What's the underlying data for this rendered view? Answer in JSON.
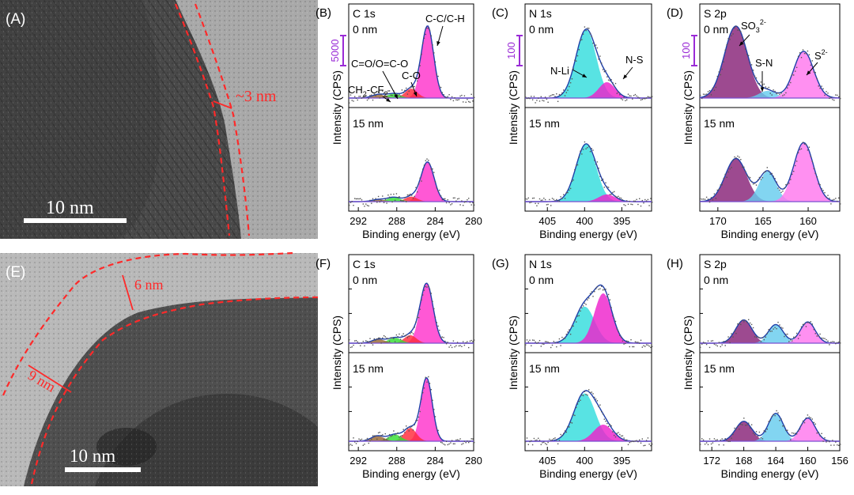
{
  "figure": {
    "tem": [
      {
        "label": "(A)",
        "scale": "10 nm",
        "thickness": [
          "~3 nm"
        ]
      },
      {
        "label": "(E)",
        "scale": "10 nm",
        "thickness": [
          "6 nm",
          "9 nm"
        ]
      }
    ]
  },
  "chart_data": [
    {
      "id": "B",
      "type": "line",
      "panel_label": "(B)",
      "element": "C 1s",
      "xlabel": "Binding energy (eV)",
      "ylabel": "Intensity (CPS)",
      "xlim": [
        293,
        280
      ],
      "xticks": [
        292,
        288,
        284,
        280
      ],
      "scale_bar": "5000",
      "subpanels": [
        {
          "depth": "0 nm",
          "peaks": [
            {
              "name": "C-C/C-H",
              "center": 284.8,
              "height": 1.0,
              "fwhm": 1.5,
              "color": "#ff33cc"
            },
            {
              "name": "C-O",
              "center": 286.5,
              "height": 0.13,
              "fwhm": 1.5,
              "color": "#ff2a3a"
            },
            {
              "name": "C=O/O=C-O",
              "center": 288.3,
              "height": 0.06,
              "fwhm": 1.6,
              "color": "#33dd33"
            },
            {
              "name": "CH2-CF2",
              "center": 289.9,
              "height": 0.05,
              "fwhm": 1.6,
              "color": "#996633"
            }
          ],
          "annotations": [
            "C-C/C-H",
            "C=O/O=C-O",
            "C-O",
            "CH2-CF2"
          ]
        },
        {
          "depth": "15 nm",
          "peaks": [
            {
              "name": "C-C/C-H",
              "center": 284.8,
              "height": 0.55,
              "fwhm": 1.6,
              "color": "#ff33cc"
            },
            {
              "name": "C-O",
              "center": 286.5,
              "height": 0.07,
              "fwhm": 1.5,
              "color": "#ff2a3a"
            },
            {
              "name": "C=O/O=C-O",
              "center": 288.3,
              "height": 0.06,
              "fwhm": 1.6,
              "color": "#33dd33"
            },
            {
              "name": "CH2-CF2",
              "center": 289.9,
              "height": 0.03,
              "fwhm": 1.6,
              "color": "#996633"
            }
          ]
        }
      ]
    },
    {
      "id": "C",
      "type": "line",
      "panel_label": "(C)",
      "element": "N 1s",
      "xlabel": "Binding energy (eV)",
      "ylabel": "Intensity (CPS)",
      "xlim": [
        408,
        391
      ],
      "xticks": [
        405,
        400,
        395
      ],
      "scale_bar": "100",
      "subpanels": [
        {
          "depth": "0 nm",
          "peaks": [
            {
              "name": "N-Li",
              "center": 399.8,
              "height": 0.95,
              "fwhm": 3.2,
              "color": "#33dddd"
            },
            {
              "name": "N-S",
              "center": 397.0,
              "height": 0.22,
              "fwhm": 2.6,
              "color": "#ee22cc"
            }
          ],
          "annotations": [
            "N-Li",
            "N-S"
          ]
        },
        {
          "depth": "15 nm",
          "peaks": [
            {
              "name": "N-Li",
              "center": 399.8,
              "height": 0.8,
              "fwhm": 3.2,
              "color": "#33dddd"
            },
            {
              "name": "N-S",
              "center": 397.0,
              "height": 0.1,
              "fwhm": 2.6,
              "color": "#ee22cc"
            }
          ]
        }
      ]
    },
    {
      "id": "D",
      "type": "line",
      "panel_label": "(D)",
      "element": "S 2p",
      "xlabel": "Binding energy (eV)",
      "ylabel": "Intensity (CPS)",
      "xlim": [
        172,
        156.5
      ],
      "xticks": [
        170,
        165,
        160
      ],
      "scale_bar": "100",
      "subpanels": [
        {
          "depth": "0 nm",
          "peaks": [
            {
              "name": "SO3 2-",
              "center": 168.0,
              "height": 1.0,
              "fwhm": 3.0,
              "color": "#882277"
            },
            {
              "name": "S-N",
              "center": 164.5,
              "height": 0.1,
              "fwhm": 2.2,
              "color": "#66ccee"
            },
            {
              "name": "S2-",
              "center": 160.5,
              "height": 0.65,
              "fwhm": 2.6,
              "color": "#ff77ee"
            }
          ],
          "annotations": [
            "SO3",
            "2-",
            "S-N",
            "S",
            "2-"
          ]
        },
        {
          "depth": "15 nm",
          "peaks": [
            {
              "name": "SO3 2-",
              "center": 168.0,
              "height": 0.6,
              "fwhm": 2.8,
              "color": "#882277"
            },
            {
              "name": "S-N",
              "center": 164.5,
              "height": 0.42,
              "fwhm": 2.2,
              "color": "#66ccee"
            },
            {
              "name": "S2-",
              "center": 160.5,
              "height": 0.82,
              "fwhm": 2.6,
              "color": "#ff77ee"
            }
          ]
        }
      ]
    },
    {
      "id": "F",
      "type": "line",
      "panel_label": "(F)",
      "element": "C 1s",
      "xlabel": "Binding energy (eV)",
      "ylabel": "Intensity (CPS)",
      "xlim": [
        293,
        280
      ],
      "xticks": [
        292,
        288,
        284,
        280
      ],
      "scale_bar": "",
      "subpanels": [
        {
          "depth": "0 nm",
          "peaks": [
            {
              "name": "C-C/C-H",
              "center": 284.9,
              "height": 0.9,
              "fwhm": 1.6,
              "color": "#ff33cc"
            },
            {
              "name": "C-O",
              "center": 286.6,
              "height": 0.12,
              "fwhm": 1.5,
              "color": "#ff2a3a"
            },
            {
              "name": "C=O/O=C-O",
              "center": 288.2,
              "height": 0.08,
              "fwhm": 1.6,
              "color": "#33dd33"
            },
            {
              "name": "CH2-CF2",
              "center": 289.9,
              "height": 0.06,
              "fwhm": 1.6,
              "color": "#996633"
            }
          ]
        },
        {
          "depth": "15 nm",
          "peaks": [
            {
              "name": "C-C/C-H",
              "center": 284.9,
              "height": 0.95,
              "fwhm": 1.4,
              "color": "#ff33cc"
            },
            {
              "name": "C-O",
              "center": 286.6,
              "height": 0.2,
              "fwhm": 1.5,
              "color": "#ff2a3a"
            },
            {
              "name": "C=O/O=C-O",
              "center": 288.2,
              "height": 0.1,
              "fwhm": 1.6,
              "color": "#33dd33"
            },
            {
              "name": "CH2-CF2",
              "center": 290.0,
              "height": 0.08,
              "fwhm": 1.6,
              "color": "#996633"
            }
          ]
        }
      ]
    },
    {
      "id": "G",
      "type": "line",
      "panel_label": "(G)",
      "element": "N 1s",
      "xlabel": "Binding energy (eV)",
      "ylabel": "Intensity (CPS)",
      "xlim": [
        408,
        391
      ],
      "xticks": [
        405,
        400,
        395
      ],
      "scale_bar": "",
      "subpanels": [
        {
          "depth": "0 nm",
          "peaks": [
            {
              "name": "N-Li",
              "center": 400.0,
              "height": 0.55,
              "fwhm": 3.2,
              "color": "#33dddd"
            },
            {
              "name": "N-S",
              "center": 397.5,
              "height": 0.75,
              "fwhm": 2.8,
              "color": "#ee22cc"
            }
          ]
        },
        {
          "depth": "15 nm",
          "peaks": [
            {
              "name": "N-Li",
              "center": 400.0,
              "height": 0.72,
              "fwhm": 3.4,
              "color": "#33dddd"
            },
            {
              "name": "N-S",
              "center": 397.5,
              "height": 0.25,
              "fwhm": 3.0,
              "color": "#ee22cc"
            }
          ]
        }
      ]
    },
    {
      "id": "H",
      "type": "line",
      "panel_label": "(H)",
      "element": "S 2p",
      "xlabel": "Binding energy (eV)",
      "ylabel": "Intensity (CPS)",
      "xlim": [
        173.5,
        156
      ],
      "xticks": [
        172,
        168,
        164,
        160,
        156
      ],
      "scale_bar": "",
      "subpanels": [
        {
          "depth": "0 nm",
          "peaks": [
            {
              "name": "SO3 2-",
              "center": 168.0,
              "height": 0.35,
              "fwhm": 2.4,
              "color": "#882277"
            },
            {
              "name": "S-N",
              "center": 164.0,
              "height": 0.28,
              "fwhm": 2.2,
              "color": "#66ccee"
            },
            {
              "name": "S2-",
              "center": 160.0,
              "height": 0.32,
              "fwhm": 2.2,
              "color": "#ff77ee"
            }
          ]
        },
        {
          "depth": "15 nm",
          "peaks": [
            {
              "name": "SO3 2-",
              "center": 168.0,
              "height": 0.3,
              "fwhm": 2.4,
              "color": "#882277"
            },
            {
              "name": "S-N",
              "center": 164.0,
              "height": 0.42,
              "fwhm": 2.2,
              "color": "#66ccee"
            },
            {
              "name": "S2-",
              "center": 160.0,
              "height": 0.35,
              "fwhm": 2.2,
              "color": "#ff77ee"
            }
          ]
        }
      ]
    }
  ]
}
